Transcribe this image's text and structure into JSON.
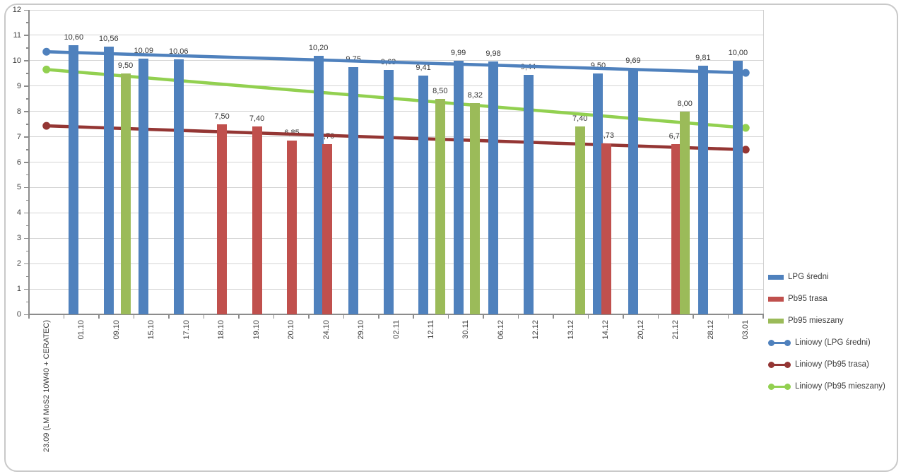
{
  "chart_data": {
    "type": "bar",
    "title": "",
    "xlabel": "",
    "ylabel": "",
    "grid": true,
    "legend_position": "right",
    "categories": [
      "23.09 (LM MoS2 10W40 + CERATEC)",
      "01.10",
      "09.10",
      "15.10",
      "17.10",
      "18.10",
      "19.10",
      "20.10",
      "24.10",
      "29.10",
      "02.11",
      "12.11",
      "30.11",
      "06.12",
      "12.12",
      "13.12",
      "14.12",
      "20,12",
      "21.12",
      "28.12",
      "03.01"
    ],
    "series": [
      {
        "name": "LPG średni",
        "color": "#4f81bd",
        "values": [
          null,
          10.6,
          10.56,
          10.09,
          10.06,
          null,
          null,
          null,
          10.2,
          9.75,
          9.63,
          9.41,
          9.99,
          9.98,
          9.44,
          null,
          9.5,
          9.69,
          null,
          9.81,
          10.0
        ],
        "labels": [
          null,
          "10,60",
          "10,56",
          "10,09",
          "10,06",
          null,
          null,
          null,
          "10,20",
          "9,75",
          "9,63",
          "9,41",
          "9,99",
          "9,98",
          "9,44",
          null,
          "9,50",
          "9,69",
          null,
          "9,81",
          "10,00"
        ]
      },
      {
        "name": "Pb95 trasa",
        "color": "#c0504d",
        "values": [
          null,
          null,
          null,
          null,
          null,
          7.5,
          7.4,
          6.85,
          6.7,
          null,
          null,
          null,
          null,
          null,
          null,
          null,
          6.73,
          null,
          6.7,
          null,
          null
        ],
        "labels": [
          null,
          null,
          null,
          null,
          null,
          "7,50",
          "7,40",
          "6,85",
          "6,70",
          null,
          null,
          null,
          null,
          null,
          null,
          null,
          "6,73",
          null,
          "6,70",
          null,
          null
        ]
      },
      {
        "name": "Pb95 mieszany",
        "color": "#9bbb59",
        "values": [
          null,
          null,
          9.5,
          null,
          null,
          null,
          null,
          null,
          null,
          null,
          null,
          8.5,
          8.32,
          null,
          null,
          7.4,
          null,
          null,
          8.0,
          null,
          null
        ],
        "labels": [
          null,
          null,
          "9,50",
          null,
          null,
          null,
          null,
          null,
          null,
          null,
          null,
          "8,50",
          "8,32",
          null,
          null,
          "7,40",
          null,
          null,
          "8,00",
          null,
          null
        ]
      }
    ],
    "trendlines": [
      {
        "name": "Liniowy (LPG średni)",
        "color": "#4f81bd",
        "start": 10.35,
        "end": 9.52
      },
      {
        "name": "Liniowy (Pb95 trasa)",
        "color": "#943634",
        "start": 7.43,
        "end": 6.49
      },
      {
        "name": "Liniowy (Pb95 mieszany)",
        "color": "#92d050",
        "start": 9.65,
        "end": 7.35
      }
    ],
    "y_axis": {
      "min": 0,
      "max": 12,
      "major": 1,
      "minor": 0.5,
      "tick_labels": [
        "0",
        "1",
        "2",
        "3",
        "4",
        "5",
        "6",
        "7",
        "8",
        "9",
        "10",
        "11",
        "12"
      ]
    }
  },
  "legend": {
    "items": [
      {
        "label": "LPG średni",
        "type": "bar",
        "color": "#4f81bd"
      },
      {
        "label": "Pb95 trasa",
        "type": "bar",
        "color": "#c0504d"
      },
      {
        "label": "Pb95 mieszany",
        "type": "bar",
        "color": "#9bbb59"
      },
      {
        "label": "Liniowy (LPG średni)",
        "type": "line",
        "color": "#4f81bd"
      },
      {
        "label": "Liniowy (Pb95 trasa)",
        "type": "line",
        "color": "#943634"
      },
      {
        "label": "Liniowy (Pb95 mieszany)",
        "type": "line",
        "color": "#92d050"
      }
    ]
  }
}
